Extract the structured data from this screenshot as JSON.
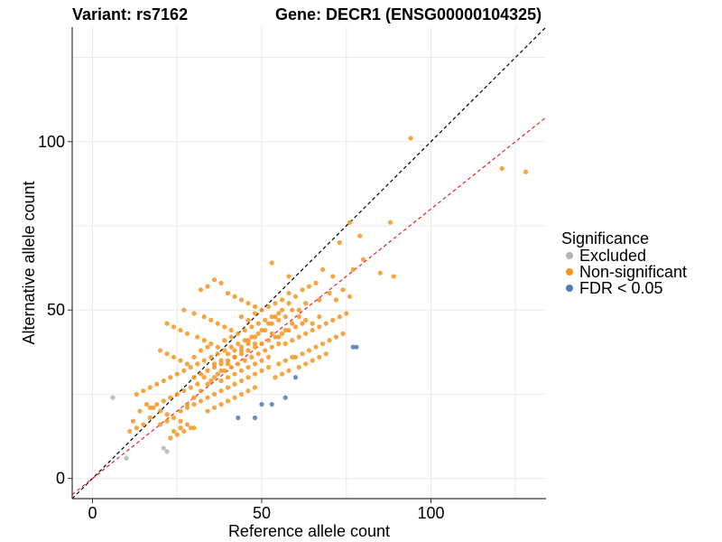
{
  "chart_data": {
    "type": "scatter",
    "title_left": "Variant: rs7162",
    "title_right": "Gene: DECR1 (ENSG00000104325)",
    "xlabel": "Reference allele count",
    "ylabel": "Alternative allele count",
    "xlim": [
      -6,
      134
    ],
    "ylim": [
      -6,
      134
    ],
    "xticks": [
      0,
      50,
      100
    ],
    "yticks": [
      0,
      50,
      100
    ],
    "grid": true,
    "legend": {
      "title": "Significance",
      "position": "right",
      "entries": [
        {
          "label": "Excluded",
          "color": "#b3b3b3"
        },
        {
          "label": "Non-significant",
          "color": "#f7941d"
        },
        {
          "label": "FDR < 0.05",
          "color": "#4f7cb8"
        }
      ]
    },
    "reference_lines": [
      {
        "name": "identity",
        "slope": 1.0,
        "intercept": 0,
        "color": "#000000",
        "style": "dashed"
      },
      {
        "name": "fit",
        "slope": 0.8,
        "intercept": 0,
        "color": "#e8202a",
        "style": "dashed"
      }
    ],
    "series": [
      {
        "name": "Excluded",
        "color": "#b3b3b3",
        "points": [
          [
            6,
            24
          ],
          [
            10,
            6
          ],
          [
            21,
            9
          ],
          [
            22,
            8
          ]
        ]
      },
      {
        "name": "FDR < 0.05",
        "color": "#4f7cb8",
        "points": [
          [
            43,
            18
          ],
          [
            48,
            18
          ],
          [
            50,
            22
          ],
          [
            53,
            22
          ],
          [
            57,
            24
          ],
          [
            60,
            30
          ],
          [
            77,
            39
          ],
          [
            78,
            39
          ]
        ]
      },
      {
        "name": "Non-significant",
        "color": "#f7941d",
        "points": [
          [
            94,
            101
          ],
          [
            121,
            92
          ],
          [
            128,
            91
          ],
          [
            88,
            76
          ],
          [
            76,
            76
          ],
          [
            79,
            72
          ],
          [
            73,
            70
          ],
          [
            80,
            65
          ],
          [
            77,
            62
          ],
          [
            85,
            61
          ],
          [
            89,
            60
          ],
          [
            71,
            60
          ],
          [
            68,
            62
          ],
          [
            66,
            58
          ],
          [
            53,
            64
          ],
          [
            58,
            60
          ],
          [
            64,
            57
          ],
          [
            70,
            55
          ],
          [
            74,
            56
          ],
          [
            76,
            54
          ],
          [
            72,
            53
          ],
          [
            67,
            53
          ],
          [
            63,
            52
          ],
          [
            61,
            50
          ],
          [
            59,
            50
          ],
          [
            57,
            48
          ],
          [
            55,
            47
          ],
          [
            53,
            46
          ],
          [
            51,
            44
          ],
          [
            49,
            43
          ],
          [
            47,
            42
          ],
          [
            45,
            41
          ],
          [
            43,
            40
          ],
          [
            41,
            39
          ],
          [
            39,
            38
          ],
          [
            37,
            37
          ],
          [
            35,
            36
          ],
          [
            33,
            35
          ],
          [
            31,
            34
          ],
          [
            29,
            33
          ],
          [
            27,
            32
          ],
          [
            25,
            31
          ],
          [
            23,
            30
          ],
          [
            21,
            29
          ],
          [
            19,
            28
          ],
          [
            17,
            27
          ],
          [
            15,
            26
          ],
          [
            13,
            25
          ],
          [
            16,
            22
          ],
          [
            18,
            21
          ],
          [
            20,
            20
          ],
          [
            22,
            19
          ],
          [
            24,
            18
          ],
          [
            26,
            17
          ],
          [
            28,
            16
          ],
          [
            30,
            15
          ],
          [
            14,
            20
          ],
          [
            12,
            17
          ],
          [
            11,
            14
          ],
          [
            13,
            15
          ],
          [
            15,
            16
          ],
          [
            17,
            18
          ],
          [
            23,
            12
          ],
          [
            25,
            13
          ],
          [
            27,
            14
          ],
          [
            29,
            15
          ],
          [
            26,
            20
          ],
          [
            28,
            22
          ],
          [
            30,
            24
          ],
          [
            32,
            26
          ],
          [
            34,
            28
          ],
          [
            36,
            30
          ],
          [
            38,
            32
          ],
          [
            40,
            34
          ],
          [
            42,
            36
          ],
          [
            44,
            38
          ],
          [
            46,
            40
          ],
          [
            48,
            42
          ],
          [
            50,
            44
          ],
          [
            52,
            46
          ],
          [
            54,
            48
          ],
          [
            56,
            50
          ],
          [
            58,
            52
          ],
          [
            60,
            54
          ],
          [
            62,
            56
          ],
          [
            36,
            59
          ],
          [
            38,
            58
          ],
          [
            34,
            57
          ],
          [
            32,
            56
          ],
          [
            40,
            55
          ],
          [
            42,
            54
          ],
          [
            44,
            53
          ],
          [
            46,
            52
          ],
          [
            48,
            51
          ],
          [
            27,
            50
          ],
          [
            30,
            49
          ],
          [
            33,
            48
          ],
          [
            35,
            47
          ],
          [
            37,
            46
          ],
          [
            39,
            45
          ],
          [
            41,
            44
          ],
          [
            22,
            46
          ],
          [
            24,
            45
          ],
          [
            26,
            44
          ],
          [
            28,
            43
          ],
          [
            31,
            42
          ],
          [
            33,
            41
          ],
          [
            35,
            40
          ],
          [
            37,
            39
          ],
          [
            39,
            41
          ],
          [
            41,
            42
          ],
          [
            43,
            43
          ],
          [
            45,
            44
          ],
          [
            47,
            45
          ],
          [
            49,
            46
          ],
          [
            51,
            47
          ],
          [
            53,
            48
          ],
          [
            55,
            49
          ],
          [
            57,
            40
          ],
          [
            59,
            41
          ],
          [
            61,
            42
          ],
          [
            63,
            43
          ],
          [
            65,
            44
          ],
          [
            67,
            45
          ],
          [
            69,
            46
          ],
          [
            71,
            47
          ],
          [
            73,
            48
          ],
          [
            75,
            49
          ],
          [
            60,
            36
          ],
          [
            62,
            37
          ],
          [
            64,
            38
          ],
          [
            66,
            39
          ],
          [
            68,
            40
          ],
          [
            70,
            41
          ],
          [
            72,
            42
          ],
          [
            74,
            43
          ],
          [
            55,
            34
          ],
          [
            57,
            35
          ],
          [
            59,
            36
          ],
          [
            61,
            33
          ],
          [
            63,
            34
          ],
          [
            65,
            35
          ],
          [
            67,
            36
          ],
          [
            69,
            37
          ],
          [
            50,
            32
          ],
          [
            52,
            33
          ],
          [
            54,
            30
          ],
          [
            56,
            31
          ],
          [
            58,
            32
          ],
          [
            46,
            30
          ],
          [
            48,
            31
          ],
          [
            44,
            29
          ],
          [
            42,
            28
          ],
          [
            40,
            27
          ],
          [
            38,
            26
          ],
          [
            36,
            25
          ],
          [
            34,
            24
          ],
          [
            32,
            23
          ],
          [
            30,
            22
          ],
          [
            28,
            21
          ],
          [
            41,
            33
          ],
          [
            43,
            34
          ],
          [
            45,
            35
          ],
          [
            47,
            36
          ],
          [
            49,
            37
          ],
          [
            51,
            38
          ],
          [
            53,
            39
          ],
          [
            55,
            40
          ],
          [
            37,
            31
          ],
          [
            39,
            32
          ],
          [
            35,
            29
          ],
          [
            33,
            30
          ],
          [
            31,
            28
          ],
          [
            29,
            27
          ],
          [
            27,
            26
          ],
          [
            25,
            25
          ],
          [
            23,
            24
          ],
          [
            21,
            23
          ],
          [
            19,
            22
          ],
          [
            17,
            21
          ],
          [
            20,
            16
          ],
          [
            22,
            17
          ],
          [
            24,
            14
          ],
          [
            26,
            15
          ],
          [
            34,
            20
          ],
          [
            36,
            21
          ],
          [
            38,
            22
          ],
          [
            40,
            23
          ],
          [
            42,
            24
          ],
          [
            44,
            25
          ],
          [
            46,
            26
          ],
          [
            48,
            27
          ],
          [
            53,
            43
          ],
          [
            55,
            42
          ],
          [
            57,
            44
          ],
          [
            59,
            46
          ],
          [
            61,
            48
          ],
          [
            63,
            47
          ],
          [
            65,
            46
          ],
          [
            67,
            48
          ],
          [
            44,
            48
          ],
          [
            46,
            47
          ],
          [
            48,
            49
          ],
          [
            50,
            50
          ],
          [
            52,
            51
          ],
          [
            54,
            52
          ],
          [
            56,
            53
          ],
          [
            58,
            55
          ],
          [
            20,
            38
          ],
          [
            22,
            37
          ],
          [
            24,
            36
          ],
          [
            26,
            35
          ],
          [
            28,
            34
          ],
          [
            30,
            36
          ],
          [
            32,
            38
          ],
          [
            34,
            39
          ],
          [
            44,
            32
          ],
          [
            46,
            33
          ],
          [
            48,
            34
          ],
          [
            50,
            35
          ],
          [
            52,
            36
          ],
          [
            40,
            30
          ],
          [
            42,
            31
          ],
          [
            38,
            29
          ],
          [
            36,
            33
          ],
          [
            38,
            34
          ],
          [
            40,
            35
          ],
          [
            42,
            36
          ],
          [
            44,
            37
          ],
          [
            46,
            38
          ],
          [
            48,
            39
          ],
          [
            50,
            40
          ],
          [
            52,
            41
          ],
          [
            54,
            42
          ],
          [
            56,
            43
          ],
          [
            58,
            44
          ],
          [
            60,
            45
          ],
          [
            62,
            46
          ],
          [
            30,
            30
          ],
          [
            32,
            31
          ],
          [
            34,
            32
          ],
          [
            36,
            34
          ],
          [
            38,
            35
          ],
          [
            40,
            37
          ],
          [
            42,
            38
          ],
          [
            44,
            39
          ],
          [
            46,
            41
          ],
          [
            48,
            40
          ]
        ]
      }
    ]
  }
}
